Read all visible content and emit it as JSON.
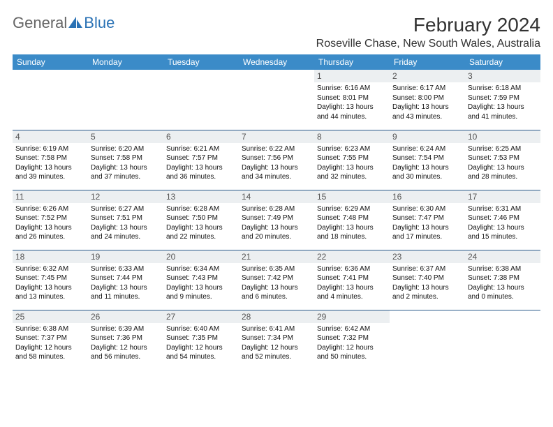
{
  "brand": {
    "part1": "General",
    "part2": "Blue"
  },
  "title": "February 2024",
  "location": "Roseville Chase, New South Wales, Australia",
  "colors": {
    "header_bg": "#3b8bc8",
    "header_text": "#ffffff",
    "daynum_bg": "#eceff1",
    "border": "#2a5a8a",
    "logo_blue": "#2a72b5"
  },
  "weekdays": [
    "Sunday",
    "Monday",
    "Tuesday",
    "Wednesday",
    "Thursday",
    "Friday",
    "Saturday"
  ],
  "weeks": [
    [
      null,
      null,
      null,
      null,
      {
        "n": "1",
        "sr": "Sunrise: 6:16 AM",
        "ss": "Sunset: 8:01 PM",
        "dl": "Daylight: 13 hours and 44 minutes."
      },
      {
        "n": "2",
        "sr": "Sunrise: 6:17 AM",
        "ss": "Sunset: 8:00 PM",
        "dl": "Daylight: 13 hours and 43 minutes."
      },
      {
        "n": "3",
        "sr": "Sunrise: 6:18 AM",
        "ss": "Sunset: 7:59 PM",
        "dl": "Daylight: 13 hours and 41 minutes."
      }
    ],
    [
      {
        "n": "4",
        "sr": "Sunrise: 6:19 AM",
        "ss": "Sunset: 7:58 PM",
        "dl": "Daylight: 13 hours and 39 minutes."
      },
      {
        "n": "5",
        "sr": "Sunrise: 6:20 AM",
        "ss": "Sunset: 7:58 PM",
        "dl": "Daylight: 13 hours and 37 minutes."
      },
      {
        "n": "6",
        "sr": "Sunrise: 6:21 AM",
        "ss": "Sunset: 7:57 PM",
        "dl": "Daylight: 13 hours and 36 minutes."
      },
      {
        "n": "7",
        "sr": "Sunrise: 6:22 AM",
        "ss": "Sunset: 7:56 PM",
        "dl": "Daylight: 13 hours and 34 minutes."
      },
      {
        "n": "8",
        "sr": "Sunrise: 6:23 AM",
        "ss": "Sunset: 7:55 PM",
        "dl": "Daylight: 13 hours and 32 minutes."
      },
      {
        "n": "9",
        "sr": "Sunrise: 6:24 AM",
        "ss": "Sunset: 7:54 PM",
        "dl": "Daylight: 13 hours and 30 minutes."
      },
      {
        "n": "10",
        "sr": "Sunrise: 6:25 AM",
        "ss": "Sunset: 7:53 PM",
        "dl": "Daylight: 13 hours and 28 minutes."
      }
    ],
    [
      {
        "n": "11",
        "sr": "Sunrise: 6:26 AM",
        "ss": "Sunset: 7:52 PM",
        "dl": "Daylight: 13 hours and 26 minutes."
      },
      {
        "n": "12",
        "sr": "Sunrise: 6:27 AM",
        "ss": "Sunset: 7:51 PM",
        "dl": "Daylight: 13 hours and 24 minutes."
      },
      {
        "n": "13",
        "sr": "Sunrise: 6:28 AM",
        "ss": "Sunset: 7:50 PM",
        "dl": "Daylight: 13 hours and 22 minutes."
      },
      {
        "n": "14",
        "sr": "Sunrise: 6:28 AM",
        "ss": "Sunset: 7:49 PM",
        "dl": "Daylight: 13 hours and 20 minutes."
      },
      {
        "n": "15",
        "sr": "Sunrise: 6:29 AM",
        "ss": "Sunset: 7:48 PM",
        "dl": "Daylight: 13 hours and 18 minutes."
      },
      {
        "n": "16",
        "sr": "Sunrise: 6:30 AM",
        "ss": "Sunset: 7:47 PM",
        "dl": "Daylight: 13 hours and 17 minutes."
      },
      {
        "n": "17",
        "sr": "Sunrise: 6:31 AM",
        "ss": "Sunset: 7:46 PM",
        "dl": "Daylight: 13 hours and 15 minutes."
      }
    ],
    [
      {
        "n": "18",
        "sr": "Sunrise: 6:32 AM",
        "ss": "Sunset: 7:45 PM",
        "dl": "Daylight: 13 hours and 13 minutes."
      },
      {
        "n": "19",
        "sr": "Sunrise: 6:33 AM",
        "ss": "Sunset: 7:44 PM",
        "dl": "Daylight: 13 hours and 11 minutes."
      },
      {
        "n": "20",
        "sr": "Sunrise: 6:34 AM",
        "ss": "Sunset: 7:43 PM",
        "dl": "Daylight: 13 hours and 9 minutes."
      },
      {
        "n": "21",
        "sr": "Sunrise: 6:35 AM",
        "ss": "Sunset: 7:42 PM",
        "dl": "Daylight: 13 hours and 6 minutes."
      },
      {
        "n": "22",
        "sr": "Sunrise: 6:36 AM",
        "ss": "Sunset: 7:41 PM",
        "dl": "Daylight: 13 hours and 4 minutes."
      },
      {
        "n": "23",
        "sr": "Sunrise: 6:37 AM",
        "ss": "Sunset: 7:40 PM",
        "dl": "Daylight: 13 hours and 2 minutes."
      },
      {
        "n": "24",
        "sr": "Sunrise: 6:38 AM",
        "ss": "Sunset: 7:38 PM",
        "dl": "Daylight: 13 hours and 0 minutes."
      }
    ],
    [
      {
        "n": "25",
        "sr": "Sunrise: 6:38 AM",
        "ss": "Sunset: 7:37 PM",
        "dl": "Daylight: 12 hours and 58 minutes."
      },
      {
        "n": "26",
        "sr": "Sunrise: 6:39 AM",
        "ss": "Sunset: 7:36 PM",
        "dl": "Daylight: 12 hours and 56 minutes."
      },
      {
        "n": "27",
        "sr": "Sunrise: 6:40 AM",
        "ss": "Sunset: 7:35 PM",
        "dl": "Daylight: 12 hours and 54 minutes."
      },
      {
        "n": "28",
        "sr": "Sunrise: 6:41 AM",
        "ss": "Sunset: 7:34 PM",
        "dl": "Daylight: 12 hours and 52 minutes."
      },
      {
        "n": "29",
        "sr": "Sunrise: 6:42 AM",
        "ss": "Sunset: 7:32 PM",
        "dl": "Daylight: 12 hours and 50 minutes."
      },
      null,
      null
    ]
  ]
}
